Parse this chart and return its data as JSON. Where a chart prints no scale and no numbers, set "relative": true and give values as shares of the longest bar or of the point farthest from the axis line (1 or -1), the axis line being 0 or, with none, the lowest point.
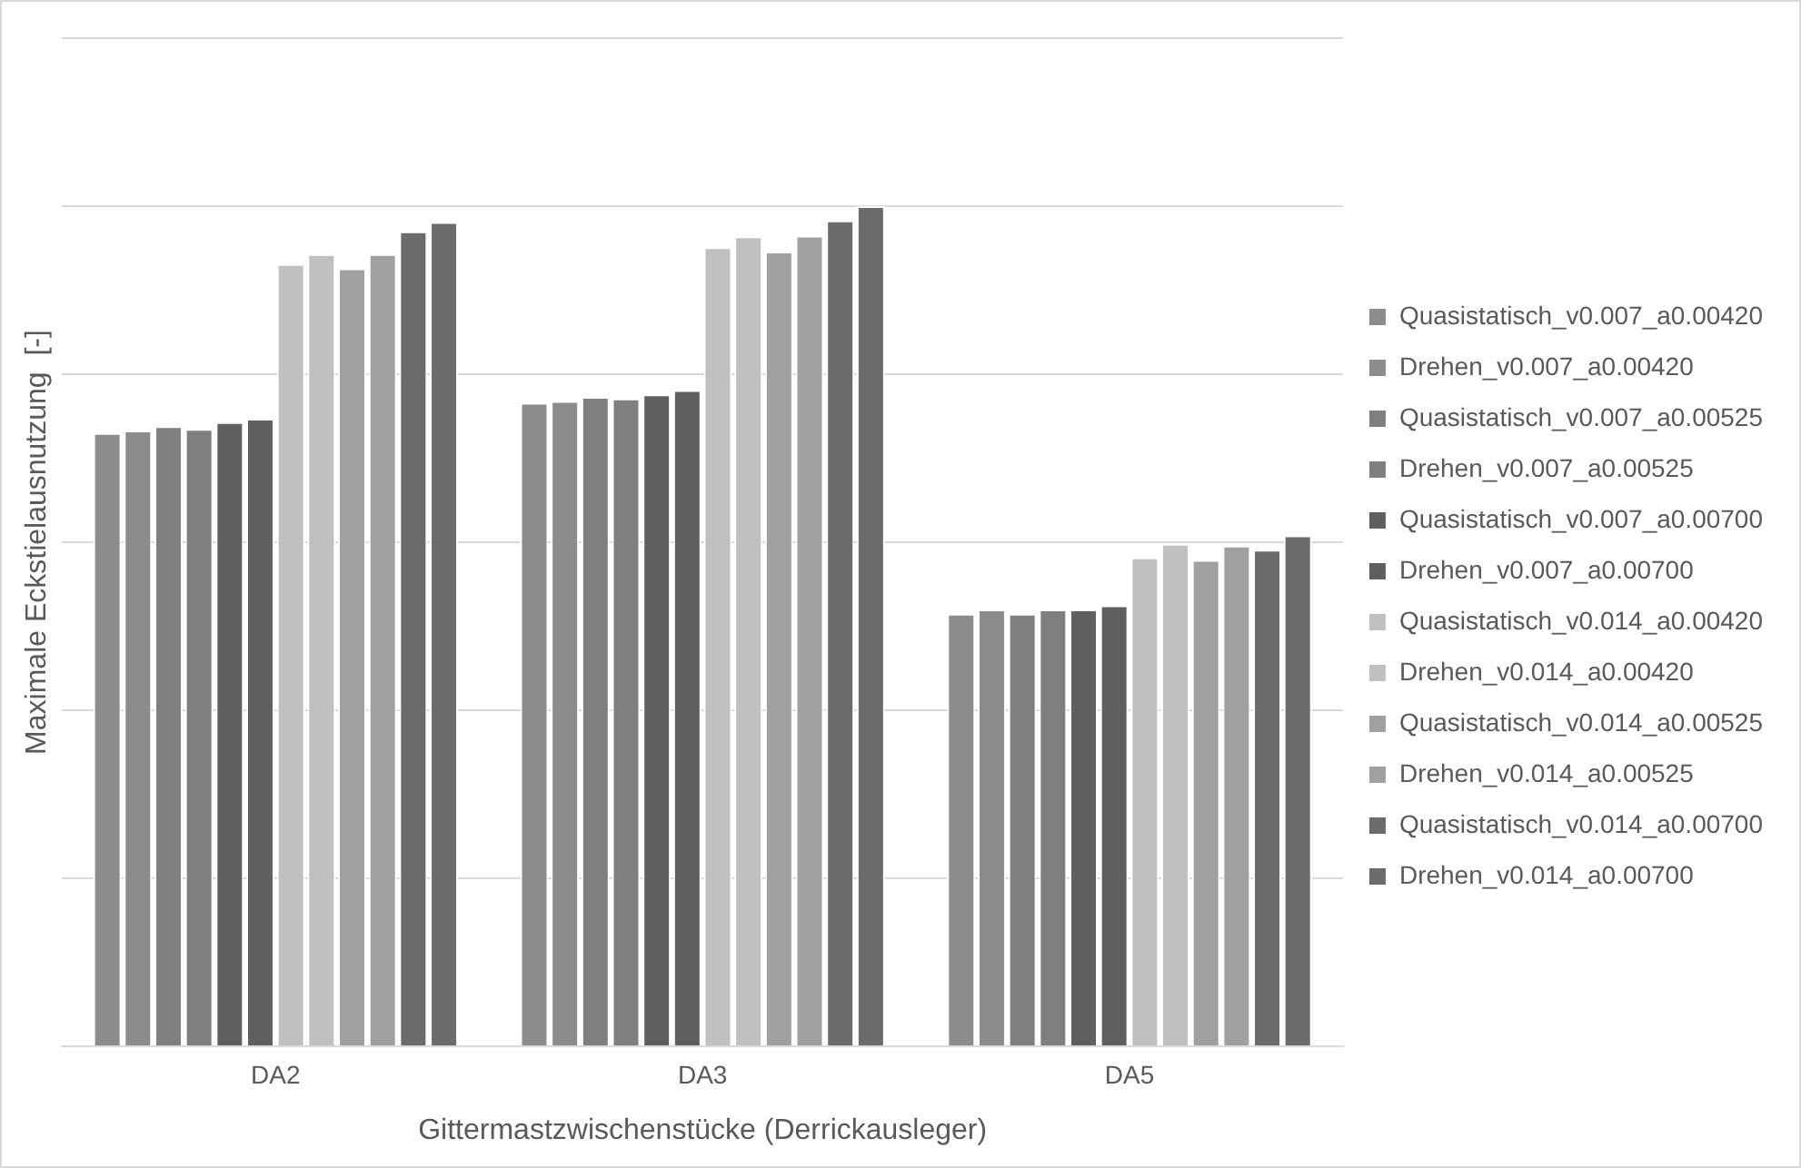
{
  "chart_data": {
    "type": "bar",
    "xlabel": "Gittermastzwischenstücke (Derrickausleger)",
    "ylabel": "Maximale Eckstielausnutzung  [-]",
    "categories": [
      "DA2",
      "DA3",
      "DA5"
    ],
    "relative": true,
    "grid": "y",
    "legend": "right",
    "series": [
      {
        "name": "Quasistatisch_v0.007_a0.00420",
        "color": "#8c8c8c",
        "values": [
          0.73,
          0.766,
          0.515
        ]
      },
      {
        "name": "Drehen_v0.007_a0.00420",
        "color": "#8c8c8c",
        "values": [
          0.733,
          0.768,
          0.52
        ]
      },
      {
        "name": "Quasistatisch_v0.007_a0.00525",
        "color": "#7f7f7f",
        "values": [
          0.738,
          0.773,
          0.515
        ]
      },
      {
        "name": "Drehen_v0.007_a0.00525",
        "color": "#7f7f7f",
        "values": [
          0.735,
          0.771,
          0.52
        ]
      },
      {
        "name": "Quasistatisch_v0.007_a0.00700",
        "color": "#5f5f5f",
        "values": [
          0.743,
          0.776,
          0.52
        ]
      },
      {
        "name": "Drehen_v0.007_a0.00700",
        "color": "#5f5f5f",
        "values": [
          0.747,
          0.781,
          0.525
        ]
      },
      {
        "name": "Quasistatisch_v0.014_a0.00420",
        "color": "#c0c0c0",
        "values": [
          0.931,
          0.951,
          0.582
        ]
      },
      {
        "name": "Drehen_v0.014_a0.00420",
        "color": "#c0c0c0",
        "values": [
          0.943,
          0.964,
          0.598
        ]
      },
      {
        "name": "Quasistatisch_v0.014_a0.00525",
        "color": "#a0a0a0",
        "values": [
          0.926,
          0.946,
          0.579
        ]
      },
      {
        "name": "Drehen_v0.014_a0.00525",
        "color": "#a0a0a0",
        "values": [
          0.943,
          0.965,
          0.596
        ]
      },
      {
        "name": "Quasistatisch_v0.014_a0.00700",
        "color": "#6b6b6b",
        "values": [
          0.97,
          0.983,
          0.591
        ]
      },
      {
        "name": "Drehen_v0.014_a0.00700",
        "color": "#6b6b6b",
        "values": [
          0.981,
          1,
          0.608
        ]
      }
    ]
  }
}
